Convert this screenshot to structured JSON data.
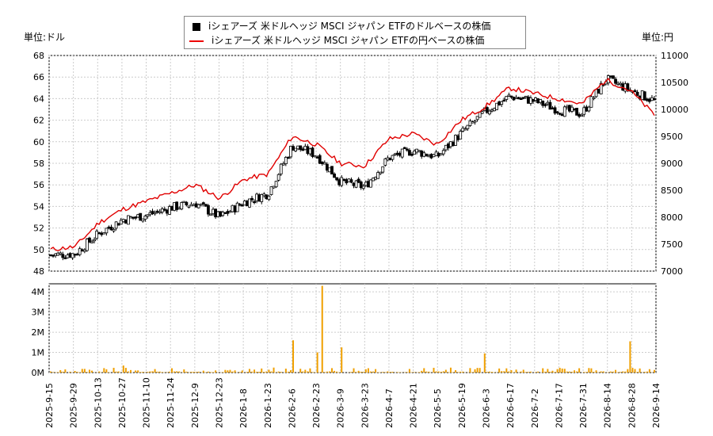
{
  "legend": {
    "dollar_label": "iシェアーズ 米ドルヘッジ MSCI ジャパン ETFのドルベースの株価",
    "yen_label": "iシェアーズ 米ドルヘッジ MSCI ジャパン ETFの円ベースの株価"
  },
  "units": {
    "left": "単位:ドル",
    "right": "単位:円"
  },
  "colors": {
    "candle": "#000000",
    "yen_line": "#e00000",
    "volume": "#f0a000",
    "grid": "#cccccc"
  },
  "chart_data": [
    {
      "type": "candlestick",
      "title": "",
      "y_left": {
        "label": "単位:ドル",
        "lim": [
          48,
          68
        ],
        "ticks": [
          48,
          50,
          52,
          54,
          56,
          58,
          60,
          62,
          64,
          66,
          68
        ]
      },
      "y_right": {
        "label": "単位:円",
        "lim": [
          7000,
          11000
        ],
        "ticks": [
          7000,
          7500,
          8000,
          8500,
          9000,
          9500,
          10000,
          10500,
          11000
        ]
      },
      "x_ticks": [
        "2025-9-15",
        "2025-9-29",
        "2025-10-13",
        "2025-10-27",
        "2025-11-10",
        "2025-11-24",
        "2025-12-9",
        "2025-12-23",
        "2026-1-8",
        "2026-1-23",
        "2026-2-6",
        "2026-2-23",
        "2026-3-9",
        "2026-3-23",
        "2026-4-7",
        "2026-4-21",
        "2026-5-5",
        "2026-5-19",
        "2026-6-3",
        "2026-6-17",
        "2026-7-2",
        "2026-7-17",
        "2026-7-31",
        "2026-8-14",
        "2026-8-28",
        "2026-9-14"
      ],
      "grid": true,
      "series": [
        {
          "name": "iシェアーズ 米ドルヘッジ MSCI ジャパン ETFのドルベースの株価",
          "axis": "left",
          "x": [
            0,
            1,
            2,
            3,
            4,
            5,
            6,
            7,
            8,
            9,
            10,
            11,
            12,
            13,
            14,
            15,
            16,
            17,
            18,
            19,
            20,
            21,
            22,
            23,
            24,
            25
          ],
          "values": [
            49.5,
            49.6,
            51.5,
            52.8,
            53.2,
            53.9,
            54.3,
            53.0,
            54.4,
            55.2,
            59.6,
            58.8,
            56.3,
            55.8,
            58.5,
            59.2,
            58.6,
            60.8,
            62.8,
            64.2,
            63.8,
            63.0,
            62.6,
            65.8,
            64.8,
            63.8
          ]
        },
        {
          "name": "iシェアーズ 米ドルヘッジ MSCI ジャパン ETFの円ベースの株価",
          "axis": "right",
          "x": [
            0,
            1,
            2,
            3,
            4,
            5,
            6,
            7,
            8,
            9,
            10,
            11,
            12,
            13,
            14,
            15,
            16,
            17,
            18,
            19,
            20,
            21,
            22,
            23,
            24,
            25
          ],
          "values": [
            7400,
            7450,
            7900,
            8150,
            8300,
            8450,
            8600,
            8350,
            8700,
            8800,
            9500,
            9350,
            9000,
            8950,
            9450,
            9550,
            9350,
            9800,
            10050,
            10400,
            10300,
            10200,
            10100,
            10550,
            10350,
            9900
          ]
        }
      ]
    },
    {
      "type": "bar",
      "title": "",
      "ylabel": "",
      "ylim": [
        0,
        4400000
      ],
      "yticks": [
        "0M",
        "1M",
        "2M",
        "3M",
        "4M"
      ],
      "highlight_values": [
        {
          "x": "2025-10-27",
          "value": 350000
        },
        {
          "x": "2026-2-6",
          "value": 1600000
        },
        {
          "x": "2026-2-23",
          "value": 1000000
        },
        {
          "x": "2026-2-23b",
          "value": 4300000
        },
        {
          "x": "2026-3-9",
          "value": 1250000
        },
        {
          "x": "2026-6-3",
          "value": 950000
        },
        {
          "x": "2026-8-28",
          "value": 1550000
        }
      ]
    }
  ]
}
